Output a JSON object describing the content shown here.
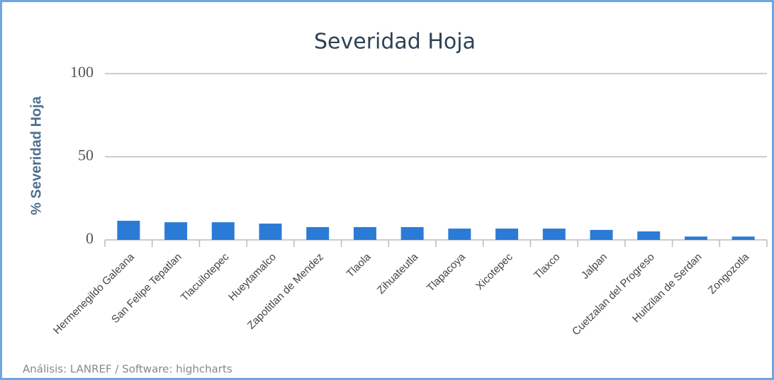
{
  "chart_data": {
    "type": "bar",
    "title": "Severidad Hoja",
    "y_axis_label": "% Severidad Hoja",
    "credits": "Análisis: LANREF / Software: highcharts",
    "categories": [
      "Hermenegildo Galeana",
      "San Felipe Tepatlan",
      "Tlacuilotepec",
      "Hueytamalco",
      "Zapotitlan de Mendez",
      "Tlaola",
      "Zihuateutla",
      "Tlapacoya",
      "Xicotepec",
      "Tlaxco",
      "Jalpan",
      "Cuetzalan del Progreso",
      "Huitzilan de Serdan",
      "Zongozotla"
    ],
    "values": [
      11.5,
      10.6,
      10.6,
      9.8,
      7.7,
      7.7,
      7.7,
      6.8,
      6.8,
      6.8,
      6,
      5.1,
      2,
      2
    ],
    "color": "#2b7bd6",
    "ylim": [
      0,
      100
    ],
    "yticks": [
      0,
      50,
      100
    ],
    "grid": true
  }
}
